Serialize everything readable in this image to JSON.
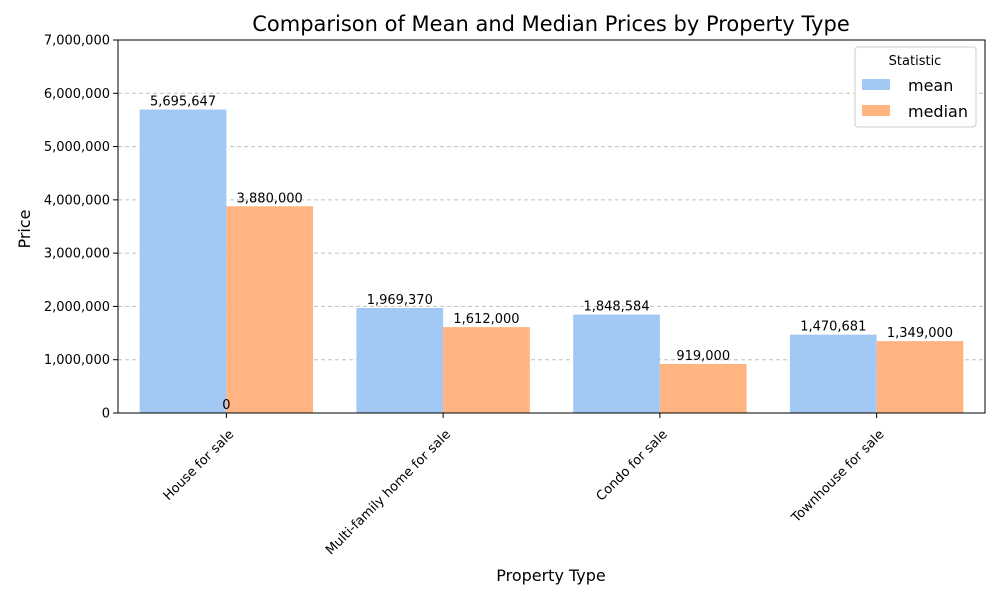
{
  "chart_data": {
    "type": "bar",
    "title": "Comparison of Mean and Median Prices by Property Type",
    "xlabel": "Property Type",
    "ylabel": "Price",
    "categories": [
      "House for sale",
      "Multi-family home for sale",
      "Condo for sale",
      "Townhouse for sale"
    ],
    "series": [
      {
        "name": "mean",
        "values": [
          5695647,
          1969370,
          1848584,
          1470681
        ],
        "labels": [
          "5,695,647",
          "1,969,370",
          "1,848,584",
          "1,470,681"
        ],
        "color": "#a1c9f4"
      },
      {
        "name": "median",
        "values": [
          3880000,
          1612000,
          919000,
          1349000
        ],
        "labels": [
          "3,880,000",
          "1,612,000",
          "919,000",
          "1,349,000"
        ],
        "color": "#ffb482"
      }
    ],
    "ylim": [
      0,
      7000000
    ],
    "yticks": [
      0,
      1000000,
      2000000,
      3000000,
      4000000,
      5000000,
      6000000,
      7000000
    ],
    "ytick_labels": [
      "0",
      "1,000,000",
      "2,000,000",
      "3,000,000",
      "4,000,000",
      "5,000,000",
      "6,000,000",
      "7,000,000"
    ],
    "extra_annotation": {
      "text": "0",
      "category_index": 0,
      "value": 0
    },
    "grid": "y-dashed",
    "legend": {
      "title": "Statistic",
      "position": "top-right"
    }
  }
}
